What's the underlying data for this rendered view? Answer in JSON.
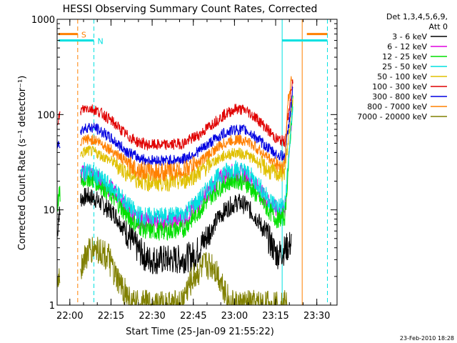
{
  "chart_data": {
    "type": "line",
    "title": "HESSI Observing Summary Count Rates, Corrected",
    "xlabel": "Start Time (25-Jan-09 21:55:22)",
    "ylabel": "Corrected Count Rate (s⁻¹ detector⁻¹)",
    "x_unit": "minutes after 21:55:22",
    "xlim": [
      0,
      102
    ],
    "ylim": [
      1,
      1000
    ],
    "yscale": "log",
    "x_ticks": [
      {
        "x": 4.63,
        "label": "22:00"
      },
      {
        "x": 19.63,
        "label": "22:15"
      },
      {
        "x": 34.63,
        "label": "22:30"
      },
      {
        "x": 49.63,
        "label": "22:45"
      },
      {
        "x": 64.63,
        "label": "23:00"
      },
      {
        "x": 79.63,
        "label": "23:15"
      },
      {
        "x": 94.63,
        "label": "23:30"
      }
    ],
    "y_ticks": [
      {
        "y": 1,
        "label": "1"
      },
      {
        "y": 10,
        "label": "10"
      },
      {
        "y": 100,
        "label": "100"
      },
      {
        "y": 1000,
        "label": "1000"
      }
    ],
    "legend_header": [
      "Det 1,3,4,5,6,9,",
      "Att 0"
    ],
    "legend_position": "right",
    "series": [
      {
        "name": "3 - 6 keV",
        "color": "#000000",
        "points": [
          [
            0,
            5
          ],
          [
            0.6,
            9
          ],
          [
            8.5,
            13
          ],
          [
            11,
            14
          ],
          [
            14,
            13
          ],
          [
            17,
            11
          ],
          [
            21,
            9
          ],
          [
            25,
            6
          ],
          [
            29,
            4
          ],
          [
            33,
            3
          ],
          [
            38,
            3
          ],
          [
            44,
            3
          ],
          [
            50,
            3.3
          ],
          [
            55,
            5.5
          ],
          [
            59,
            8.5
          ],
          [
            63,
            11
          ],
          [
            66,
            12
          ],
          [
            69,
            11
          ],
          [
            73,
            8
          ],
          [
            77,
            5
          ],
          [
            80,
            3.4
          ],
          [
            82,
            3.6
          ],
          [
            85.5,
            4.5
          ]
        ]
      },
      {
        "name": "6 - 12 keV",
        "color": "#e000e0",
        "points": [
          [
            8.5,
            23
          ],
          [
            11,
            25
          ],
          [
            14,
            22
          ],
          [
            17,
            19
          ],
          [
            21,
            15
          ],
          [
            25,
            11
          ],
          [
            29,
            8
          ],
          [
            33,
            7.5
          ],
          [
            40,
            7.5
          ],
          [
            46,
            8
          ],
          [
            52,
            12
          ],
          [
            57,
            18
          ],
          [
            61,
            23
          ],
          [
            65,
            25
          ],
          [
            69,
            23
          ],
          [
            73,
            17
          ],
          [
            77,
            12
          ],
          [
            80,
            10
          ],
          [
            83,
            10
          ],
          [
            86,
            140
          ]
        ]
      },
      {
        "name": "12 - 25 keV",
        "color": "#00e000",
        "points": [
          [
            0,
            10
          ],
          [
            0.6,
            14
          ],
          [
            8.5,
            20
          ],
          [
            11,
            22
          ],
          [
            14,
            20
          ],
          [
            17,
            17
          ],
          [
            21,
            13
          ],
          [
            25,
            9
          ],
          [
            29,
            7
          ],
          [
            33,
            6
          ],
          [
            40,
            6
          ],
          [
            46,
            6.3
          ],
          [
            52,
            10
          ],
          [
            57,
            15
          ],
          [
            61,
            19
          ],
          [
            65,
            21
          ],
          [
            69,
            19
          ],
          [
            73,
            14
          ],
          [
            77,
            10
          ],
          [
            80,
            8
          ],
          [
            83,
            8.5
          ],
          [
            86,
            150
          ]
        ]
      },
      {
        "name": "25 - 50 keV",
        "color": "#00e0e0",
        "points": [
          [
            8.5,
            24
          ],
          [
            11,
            26
          ],
          [
            14,
            23
          ],
          [
            17,
            20
          ],
          [
            21,
            16
          ],
          [
            25,
            12
          ],
          [
            29,
            9
          ],
          [
            33,
            8.5
          ],
          [
            40,
            8.5
          ],
          [
            46,
            9
          ],
          [
            52,
            13
          ],
          [
            57,
            20
          ],
          [
            61,
            25
          ],
          [
            65,
            27
          ],
          [
            69,
            25
          ],
          [
            73,
            19
          ],
          [
            77,
            13
          ],
          [
            80,
            11
          ],
          [
            83,
            11
          ],
          [
            86,
            140
          ]
        ]
      },
      {
        "name": "50 - 100 keV",
        "color": "#e0c000",
        "points": [
          [
            8.5,
            38
          ],
          [
            11,
            42
          ],
          [
            14,
            40
          ],
          [
            17,
            36
          ],
          [
            21,
            31
          ],
          [
            25,
            25
          ],
          [
            29,
            21
          ],
          [
            33,
            19.5
          ],
          [
            40,
            19.5
          ],
          [
            46,
            20
          ],
          [
            52,
            25
          ],
          [
            57,
            32
          ],
          [
            61,
            37
          ],
          [
            65,
            40
          ],
          [
            69,
            38
          ],
          [
            73,
            32
          ],
          [
            77,
            26
          ],
          [
            80,
            24
          ],
          [
            83,
            25
          ],
          [
            86,
            160
          ]
        ]
      },
      {
        "name": "100 - 300 keV",
        "color": "#e00000",
        "points": [
          [
            0,
            85
          ],
          [
            0.5,
            95
          ],
          [
            8.5,
            110
          ],
          [
            11,
            118
          ],
          [
            14,
            112
          ],
          [
            17,
            100
          ],
          [
            21,
            80
          ],
          [
            25,
            62
          ],
          [
            29,
            52
          ],
          [
            33,
            48
          ],
          [
            40,
            48
          ],
          [
            46,
            50
          ],
          [
            52,
            62
          ],
          [
            57,
            82
          ],
          [
            61,
            100
          ],
          [
            65,
            115
          ],
          [
            69,
            110
          ],
          [
            73,
            90
          ],
          [
            77,
            68
          ],
          [
            80,
            55
          ],
          [
            83,
            52
          ],
          [
            86,
            240
          ]
        ]
      },
      {
        "name": "300 - 800 keV",
        "color": "#0000e0",
        "points": [
          [
            0,
            45
          ],
          [
            0.5,
            50
          ],
          [
            8.5,
            68
          ],
          [
            11,
            74
          ],
          [
            14,
            72
          ],
          [
            17,
            64
          ],
          [
            21,
            52
          ],
          [
            25,
            42
          ],
          [
            29,
            36
          ],
          [
            33,
            33
          ],
          [
            40,
            33
          ],
          [
            46,
            34
          ],
          [
            52,
            42
          ],
          [
            57,
            54
          ],
          [
            61,
            64
          ],
          [
            65,
            70
          ],
          [
            69,
            68
          ],
          [
            73,
            56
          ],
          [
            77,
            44
          ],
          [
            80,
            38
          ],
          [
            83,
            36
          ],
          [
            86,
            190
          ]
        ]
      },
      {
        "name": "800 - 7000 keV",
        "color": "#ff8000",
        "points": [
          [
            8.5,
            50
          ],
          [
            11,
            55
          ],
          [
            14,
            54
          ],
          [
            17,
            48
          ],
          [
            21,
            40
          ],
          [
            25,
            32
          ],
          [
            29,
            27
          ],
          [
            33,
            25
          ],
          [
            40,
            25
          ],
          [
            46,
            26
          ],
          [
            52,
            32
          ],
          [
            57,
            42
          ],
          [
            61,
            50
          ],
          [
            65,
            55
          ],
          [
            69,
            53
          ],
          [
            73,
            44
          ],
          [
            77,
            35
          ],
          [
            80,
            30
          ],
          [
            83,
            29
          ],
          [
            84,
            130
          ],
          [
            85.5,
            240
          ]
        ]
      },
      {
        "name": "7000 - 20000 keV",
        "color": "#808000",
        "points": [
          [
            0,
            1.5
          ],
          [
            0.6,
            2
          ],
          [
            8.5,
            2.5
          ],
          [
            11,
            3.5
          ],
          [
            14,
            4
          ],
          [
            17,
            3.5
          ],
          [
            19,
            3
          ],
          [
            21,
            2
          ],
          [
            23,
            1.6
          ],
          [
            25,
            1.4
          ],
          [
            27,
            1
          ],
          [
            45,
            1
          ],
          [
            47,
            1.4
          ],
          [
            50,
            2
          ],
          [
            54,
            2.6
          ],
          [
            57,
            2.6
          ],
          [
            59,
            2
          ],
          [
            61,
            1.5
          ],
          [
            63,
            1
          ],
          [
            84,
            1
          ]
        ]
      }
    ],
    "markers": [
      {
        "label": "S",
        "color": "#ff8000",
        "x_line": 7.5,
        "y_bar": 700,
        "segments": [
          [
            0.5,
            7.5
          ],
          [
            91,
            98.5
          ]
        ],
        "x_edge": 89.3
      },
      {
        "label": "N",
        "color": "#00e0e0",
        "x_line": 13.4,
        "y_bar": 600,
        "segments": [
          [
            0.5,
            13.4
          ],
          [
            82,
            98.5
          ]
        ],
        "x_edges": [
          82,
          98.5
        ]
      }
    ],
    "annotation": "23-Feb-2010 18:28"
  }
}
